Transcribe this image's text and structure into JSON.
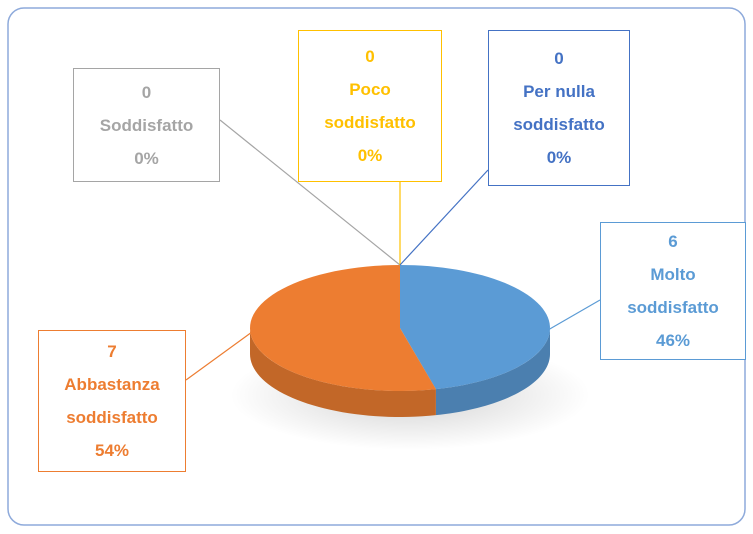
{
  "chart_data": {
    "type": "pie",
    "categories": [
      "Molto soddisfatto",
      "Abbastanza soddisfatto",
      "Soddisfatto",
      "Poco soddisfatto",
      "Per nulla soddisfatto"
    ],
    "values": [
      6,
      7,
      0,
      0,
      0
    ],
    "percent_labels": [
      "46%",
      "54%",
      "0%",
      "0%",
      "0%"
    ],
    "colors": [
      "#5b9bd5",
      "#ed7d31",
      "#a5a5a5",
      "#ffc000",
      "#4472c4"
    ]
  }
}
